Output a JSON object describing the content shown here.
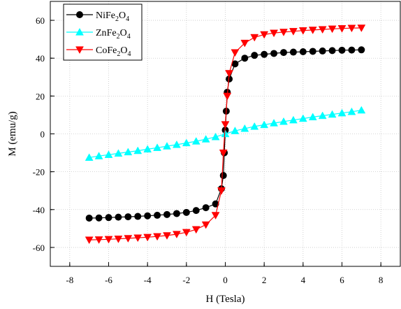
{
  "chart_data": {
    "type": "line",
    "xlabel": "H (Tesla)",
    "ylabel": "M (emu/g)",
    "xlim": [
      -9,
      9
    ],
    "ylim": [
      -70,
      70
    ],
    "xticks": [
      -8,
      -6,
      -4,
      -2,
      0,
      2,
      4,
      6,
      8
    ],
    "yticks": [
      -60,
      -40,
      -20,
      0,
      20,
      40,
      60
    ],
    "grid": true,
    "legend_position": "top-left",
    "series": [
      {
        "name": "NiFe2O4",
        "name_parts": [
          [
            "Ni",
            "n"
          ],
          [
            "Fe",
            "n"
          ],
          [
            "2",
            "s"
          ],
          [
            "O",
            "n"
          ],
          [
            "4",
            "s"
          ]
        ],
        "color": "#000000",
        "marker": "circle",
        "x": [
          -7,
          -6.5,
          -6,
          -5.5,
          -5,
          -4.5,
          -4,
          -3.5,
          -3,
          -2.5,
          -2,
          -1.5,
          -1,
          -0.5,
          -0.2,
          -0.1,
          -0.05,
          0,
          0.05,
          0.1,
          0.2,
          0.5,
          1,
          1.5,
          2,
          2.5,
          3,
          3.5,
          4,
          4.5,
          5,
          5.5,
          6,
          6.5,
          7
        ],
        "y": [
          -44.5,
          -44.4,
          -44.2,
          -44,
          -43.8,
          -43.6,
          -43.3,
          -43,
          -42.6,
          -42.1,
          -41.5,
          -40.5,
          -39,
          -37,
          -29,
          -22,
          -10,
          2,
          12,
          22,
          29,
          37,
          40,
          41.5,
          42,
          42.5,
          43,
          43.2,
          43.4,
          43.6,
          43.8,
          44,
          44.2,
          44.3,
          44.4
        ]
      },
      {
        "name": "ZnFe2O4",
        "name_parts": [
          [
            "Zn",
            "n"
          ],
          [
            "Fe",
            "n"
          ],
          [
            "2",
            "s"
          ],
          [
            "O",
            "n"
          ],
          [
            "4",
            "s"
          ]
        ],
        "color": "#00ffff",
        "marker": "triangle-up",
        "x": [
          -7,
          -6.5,
          -6,
          -5.5,
          -5,
          -4.5,
          -4,
          -3.5,
          -3,
          -2.5,
          -2,
          -1.5,
          -1,
          -0.5,
          0,
          0.5,
          1,
          1.5,
          2,
          2.5,
          3,
          3.5,
          4,
          4.5,
          5,
          5.5,
          6,
          6.5,
          7
        ],
        "y": [
          -12.5,
          -11.7,
          -11,
          -10.3,
          -9.6,
          -8.9,
          -8.1,
          -7.3,
          -6.5,
          -5.7,
          -4.8,
          -3.9,
          -2.8,
          -1.6,
          0,
          1.6,
          2.8,
          3.9,
          4.8,
          5.7,
          6.5,
          7.3,
          8.1,
          8.9,
          9.6,
          10.3,
          11,
          11.7,
          12.5
        ]
      },
      {
        "name": "CoFe2O4",
        "name_parts": [
          [
            "Co",
            "n"
          ],
          [
            "Fe",
            "n"
          ],
          [
            "2",
            "s"
          ],
          [
            "O",
            "n"
          ],
          [
            "4",
            "s"
          ]
        ],
        "color": "#ff0000",
        "marker": "triangle-down",
        "x": [
          -7,
          -6.5,
          -6,
          -5.5,
          -5,
          -4.5,
          -4,
          -3.5,
          -3,
          -2.5,
          -2,
          -1.5,
          -1,
          -0.5,
          -0.2,
          -0.1,
          0,
          0.1,
          0.2,
          0.5,
          1,
          1.5,
          2,
          2.5,
          3,
          3.5,
          4,
          4.5,
          5,
          5.5,
          6,
          6.5,
          7
        ],
        "y": [
          -56,
          -55.9,
          -55.7,
          -55.5,
          -55.2,
          -54.9,
          -54.6,
          -54.2,
          -53.7,
          -53,
          -52,
          -50.5,
          -48,
          -43,
          -30,
          -10,
          5,
          20,
          32,
          43,
          48,
          51,
          52.5,
          53.3,
          53.8,
          54.2,
          54.6,
          54.9,
          55.2,
          55.5,
          55.7,
          55.9,
          56
        ]
      }
    ]
  }
}
